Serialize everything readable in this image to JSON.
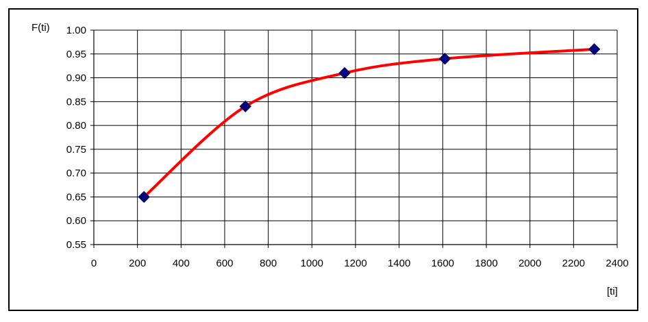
{
  "chart_data": {
    "type": "line",
    "title": "",
    "xlabel": "[ti]",
    "ylabel": "F(ti)",
    "xlim": [
      0,
      2400
    ],
    "ylim": [
      0.55,
      1.0
    ],
    "x_ticks": [
      0,
      200,
      400,
      600,
      800,
      1000,
      1200,
      1400,
      1600,
      1800,
      2000,
      2200,
      2400
    ],
    "y_ticks": [
      0.55,
      0.6,
      0.65,
      0.7,
      0.75,
      0.8,
      0.85,
      0.9,
      0.95,
      1.0
    ],
    "x_tick_labels": [
      "0",
      "200",
      "400",
      "600",
      "800",
      "1000",
      "1200",
      "1400",
      "1600",
      "1800",
      "2000",
      "2200",
      "2400"
    ],
    "y_tick_labels": [
      "0.55",
      "0.60",
      "0.65",
      "0.70",
      "0.75",
      "0.80",
      "0.85",
      "0.90",
      "0.95",
      "1.00"
    ],
    "grid": true,
    "legend": "none",
    "series": [
      {
        "marker": "diamond",
        "marker_color": "#000080",
        "line_color": "#ff0000",
        "x": [
          230,
          695,
          1150,
          1610,
          2295
        ],
        "y": [
          0.65,
          0.84,
          0.91,
          0.94,
          0.96
        ]
      }
    ]
  }
}
